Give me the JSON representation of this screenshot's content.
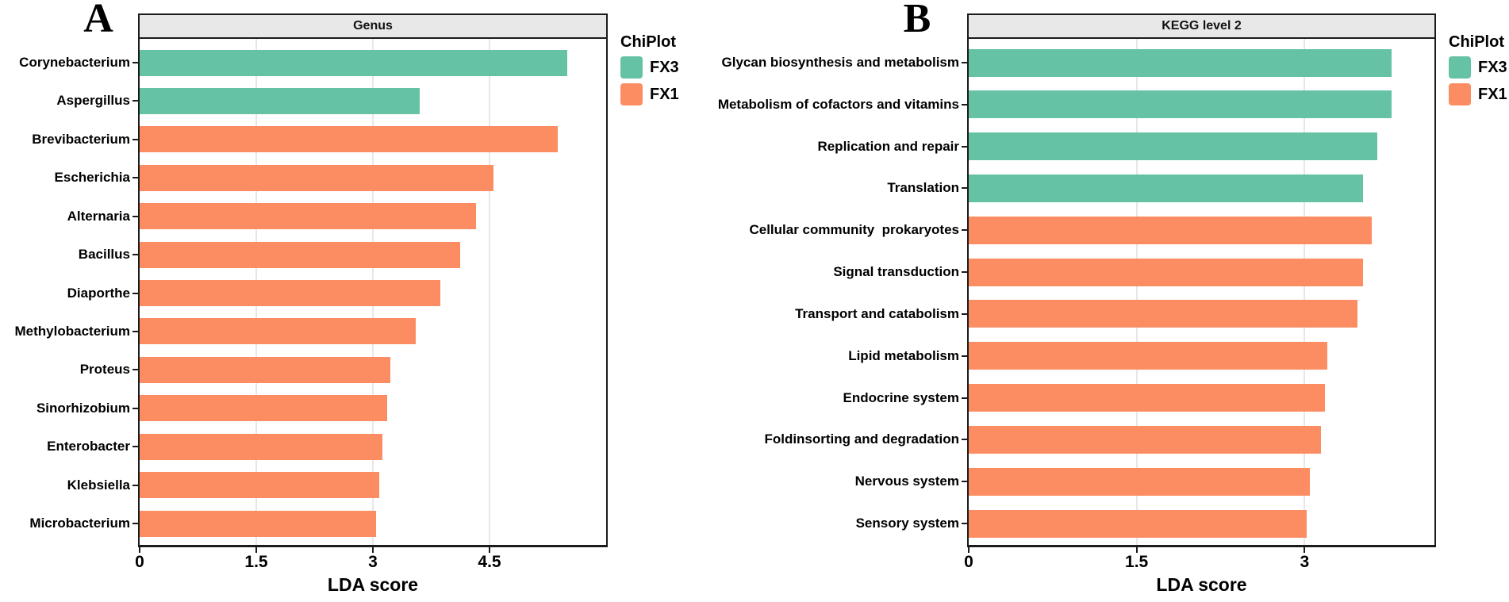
{
  "panels": [
    {
      "letter": "A",
      "strip_title": "Genus",
      "xlabel": "LDA score",
      "legend": {
        "title": "ChiPlot",
        "items": [
          {
            "label": "FX3",
            "color": "#66C2A5"
          },
          {
            "label": "FX1",
            "color": "#FC8D62"
          }
        ]
      }
    },
    {
      "letter": "B",
      "strip_title": "KEGG level 2",
      "xlabel": "LDA score",
      "legend": {
        "title": "ChiPlot",
        "items": [
          {
            "label": "FX3",
            "color": "#66C2A5"
          },
          {
            "label": "FX1",
            "color": "#FC8D62"
          }
        ]
      }
    }
  ],
  "colors": {
    "fx3_green": "#66C2A5",
    "fx1_orange": "#FC8D62",
    "strip_background": "#E8E8E8",
    "panel_border": "#1b1b1b",
    "gridline": "#E7E7E7"
  },
  "chart_data": [
    {
      "type": "bar",
      "orientation": "horizontal",
      "title": "Genus",
      "xlabel": "LDA score",
      "ylabel": "",
      "xlim": [
        0,
        6.0
      ],
      "x_tick_values": [
        0,
        1.5,
        3,
        4.5
      ],
      "x_tick_labels": [
        "0",
        "1.5",
        "3",
        "4.5"
      ],
      "grid": "vertical-major-only",
      "legend_title": "ChiPlot",
      "legend_position": "right-top-outside",
      "series_colors": {
        "FX3": "#66C2A5",
        "FX1": "#FC8D62"
      },
      "categories": [
        "Corynebacterium",
        "Aspergillus",
        "Brevibacterium",
        "Escherichia",
        "Alternaria",
        "Bacillus",
        "Diaporthe",
        "Methylobacterium",
        "Proteus",
        "Sinorhizobium",
        "Enterobacter",
        "Klebsiella",
        "Microbacterium"
      ],
      "groups": [
        "FX3",
        "FX3",
        "FX1",
        "FX1",
        "FX1",
        "FX1",
        "FX1",
        "FX1",
        "FX1",
        "FX1",
        "FX1",
        "FX1",
        "FX1"
      ],
      "values": [
        5.5,
        3.6,
        5.38,
        4.55,
        4.33,
        4.12,
        3.87,
        3.55,
        3.22,
        3.18,
        3.12,
        3.08,
        3.04
      ]
    },
    {
      "type": "bar",
      "orientation": "horizontal",
      "title": "KEGG level 2",
      "xlabel": "LDA score",
      "ylabel": "",
      "xlim": [
        0,
        4.16
      ],
      "x_tick_values": [
        0,
        1.5,
        3
      ],
      "x_tick_labels": [
        "0",
        "1.5",
        "3"
      ],
      "grid": "vertical-major-only",
      "legend_title": "ChiPlot",
      "legend_position": "right-top-outside",
      "series_colors": {
        "FX3": "#66C2A5",
        "FX1": "#FC8D62"
      },
      "categories": [
        "Glycan biosynthesis and metabolism",
        "Metabolism of cofactors and vitamins",
        "Replication and repair",
        "Translation",
        "Cellular community  prokaryotes",
        "Signal transduction",
        "Transport and catabolism",
        "Lipid metabolism",
        "Endocrine system",
        "Foldinsorting and degradation",
        "Nervous system",
        "Sensory system"
      ],
      "groups": [
        "FX3",
        "FX3",
        "FX3",
        "FX3",
        "FX1",
        "FX1",
        "FX1",
        "FX1",
        "FX1",
        "FX1",
        "FX1",
        "FX1"
      ],
      "values": [
        3.78,
        3.78,
        3.65,
        3.52,
        3.6,
        3.52,
        3.47,
        3.2,
        3.18,
        3.15,
        3.05,
        3.02
      ]
    }
  ]
}
